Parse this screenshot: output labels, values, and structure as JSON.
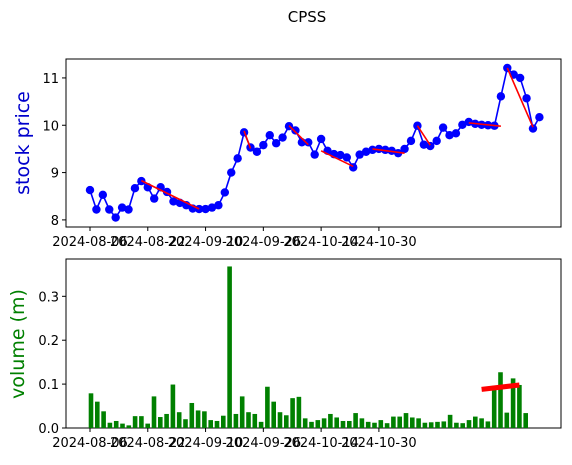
{
  "chart_data": [
    {
      "type": "line",
      "title": "CPSS",
      "ylabel": "stock price",
      "ylabel_color": "#0000cc",
      "line_color": "#0000ff",
      "trend_color": "#ff0000",
      "ylim": [
        7.85,
        11.4
      ],
      "yticks": [
        8,
        9,
        10,
        11
      ],
      "xticks": [
        "2024-08-06",
        "2024-08-22",
        "2024-09-10",
        "2024-09-26",
        "2024-10-14",
        "2024-10-30"
      ],
      "tick_positions": [
        0,
        9,
        18,
        27,
        36,
        45
      ],
      "x": [
        0,
        1,
        2,
        3,
        4,
        5,
        6,
        7,
        8,
        9,
        10,
        11,
        12,
        13,
        14,
        15,
        16,
        17,
        18,
        19,
        20,
        21,
        22,
        23,
        24,
        25,
        26,
        27,
        28,
        29,
        30,
        31,
        32,
        33,
        34,
        35,
        36,
        37,
        38,
        39,
        40,
        41,
        42,
        43,
        44,
        45,
        46,
        47,
        48,
        49,
        50,
        51,
        52,
        53,
        54,
        55
      ],
      "values": [
        8.63,
        8.22,
        8.53,
        8.22,
        8.05,
        8.26,
        8.22,
        8.67,
        8.82,
        8.69,
        8.45,
        8.69,
        8.59,
        8.39,
        8.36,
        8.31,
        8.24,
        8.23,
        8.23,
        8.26,
        8.31,
        8.58,
        9.0,
        9.3,
        9.85,
        9.53,
        9.44,
        9.58,
        9.79,
        9.62,
        9.74,
        9.98,
        9.89,
        9.64,
        9.64,
        9.38,
        9.71,
        9.46,
        9.39,
        9.37,
        9.32,
        9.11,
        9.38,
        9.44,
        9.48,
        9.5,
        9.48,
        9.46,
        9.41,
        9.5,
        9.67,
        9.99,
        9.59,
        9.56,
        9.67,
        9.95
      ],
      "x_tail": [
        56,
        57,
        58,
        59,
        60,
        61,
        62,
        63,
        64,
        65,
        66,
        67,
        68,
        69,
        70
      ],
      "values_tail": [
        9.79,
        9.83,
        10.01,
        10.07,
        10.03,
        10.01,
        10.0,
        9.99,
        10.61,
        11.21,
        11.07,
        11.0,
        10.57,
        9.93,
        10.17
      ],
      "trend_segments": [
        [
          [
            8,
            8.83
          ],
          [
            17,
            8.23
          ]
        ],
        [
          [
            24,
            9.88
          ],
          [
            25,
            9.51
          ]
        ],
        [
          [
            31,
            9.99
          ],
          [
            34,
            9.59
          ]
        ],
        [
          [
            36,
            9.46
          ],
          [
            41,
            9.13
          ]
        ],
        [
          [
            44,
            9.5
          ],
          [
            49,
            9.41
          ]
        ],
        [
          [
            51,
            9.99
          ],
          [
            53,
            9.58
          ]
        ],
        [
          [
            59,
            10.05
          ],
          [
            64,
            9.98
          ]
        ],
        [
          [
            65,
            11.21
          ],
          [
            69,
            9.96
          ]
        ]
      ]
    },
    {
      "type": "bar",
      "ylabel": "volume (m)",
      "ylabel_color": "#008000",
      "bar_color": "#008000",
      "trend_color": "#ff0000",
      "ylim": [
        0,
        0.385
      ],
      "yticks": [
        0.0,
        0.1,
        0.2,
        0.3
      ],
      "ytick_labels": [
        "0.0",
        "0.1",
        "0.2",
        "0.3"
      ],
      "xticks": [
        "2024-08-06",
        "2024-08-22",
        "2024-09-10",
        "2024-09-26",
        "2024-10-14",
        "2024-10-30"
      ],
      "tick_positions": [
        0,
        9,
        18,
        27,
        36,
        45
      ],
      "values": [
        0.079,
        0.06,
        0.038,
        0.012,
        0.016,
        0.01,
        0.006,
        0.027,
        0.027,
        0.01,
        0.072,
        0.025,
        0.032,
        0.099,
        0.036,
        0.02,
        0.057,
        0.04,
        0.038,
        0.018,
        0.016,
        0.028,
        0.368,
        0.032,
        0.072,
        0.036,
        0.032,
        0.014,
        0.094,
        0.06,
        0.036,
        0.029,
        0.068,
        0.071,
        0.022,
        0.014,
        0.018,
        0.022,
        0.032,
        0.024,
        0.016,
        0.016,
        0.034,
        0.022,
        0.014,
        0.012,
        0.018,
        0.011,
        0.026,
        0.026,
        0.034,
        0.024,
        0.022,
        0.012,
        0.013,
        0.014,
        0.015,
        0.03,
        0.012,
        0.011,
        0.018,
        0.026,
        0.022,
        0.015,
        0.096,
        0.127,
        0.035,
        0.113,
        0.098,
        0.034
      ],
      "trend": [
        [
          62,
          0.088
        ],
        [
          68,
          0.098
        ]
      ]
    }
  ]
}
